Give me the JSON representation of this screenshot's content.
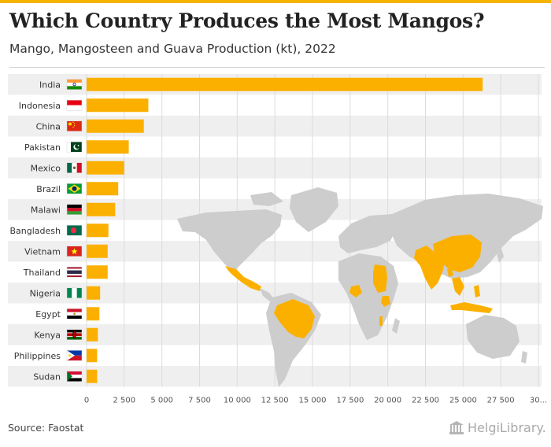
{
  "header": {
    "title": "Which Country Produces the Most Mangos?",
    "subtitle": "Mango, Mangosteen and Guava Production (kt), 2022"
  },
  "footer": {
    "source": "Source: Faostat",
    "brand": "HelgiLibrary."
  },
  "colors": {
    "bar": "#fbb000",
    "band": "#efefef",
    "grid": "#dcdcdc",
    "map_land": "#cdcdcd",
    "map_highlight": "#fbb000"
  },
  "chart_data": {
    "type": "bar",
    "orientation": "horizontal",
    "title": "Which Country Produces the Most Mangos?",
    "subtitle": "Mango, Mangosteen and Guava Production (kt), 2022",
    "categories": [
      "India",
      "Indonesia",
      "China",
      "Pakistan",
      "Mexico",
      "Brazil",
      "Malawi",
      "Bangladesh",
      "Vietnam",
      "Thailand",
      "Nigeria",
      "Egypt",
      "Kenya",
      "Philippines",
      "Sudan"
    ],
    "values": [
      26300,
      4100,
      3800,
      2800,
      2500,
      2100,
      1900,
      1450,
      1400,
      1400,
      900,
      850,
      750,
      700,
      700
    ],
    "flags": [
      "india-flag",
      "indonesia-flag",
      "china-flag",
      "pakistan-flag",
      "mexico-flag",
      "brazil-flag",
      "malawi-flag",
      "bangladesh-flag",
      "vietnam-flag",
      "thailand-flag",
      "nigeria-flag",
      "egypt-flag",
      "kenya-flag",
      "philippines-flag",
      "sudan-flag"
    ],
    "x_ticks": [
      "0",
      "2 500",
      "5 000",
      "7 500",
      "10 000",
      "12 500",
      "15 000",
      "17 500",
      "20 000",
      "22 500",
      "25 000",
      "27 500",
      "30..."
    ],
    "xlim": [
      0,
      30000
    ],
    "grid": true,
    "legend": "none"
  }
}
